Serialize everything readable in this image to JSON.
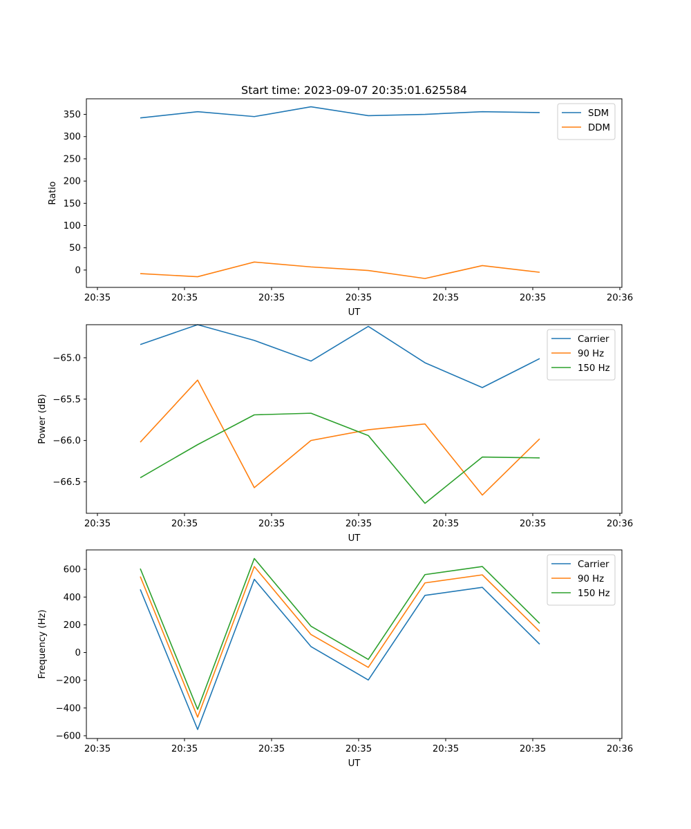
{
  "chart_data": [
    {
      "type": "line",
      "title": "Start time: 2023-09-07 20:35:01.625584",
      "xlabel": "UT",
      "ylabel": "Ratio",
      "ylim": [
        -39,
        385
      ],
      "yticks": [
        0,
        50,
        100,
        150,
        200,
        250,
        300,
        350
      ],
      "ytick_labels": [
        "0",
        "50",
        "100",
        "150",
        "200",
        "250",
        "300",
        "350"
      ],
      "xtick_labels": [
        "20:35",
        "20:35",
        "20:35",
        "20:35",
        "20:35",
        "20:35",
        "20:35"
      ],
      "xtick_last_label": "20:36",
      "legend": "top-right",
      "series": [
        {
          "name": "SDM",
          "color": "#1f77b4",
          "values": [
            342,
            356,
            345,
            367,
            347,
            350,
            356,
            354
          ]
        },
        {
          "name": "DDM",
          "color": "#ff7f0e",
          "values": [
            -8,
            -15,
            18,
            7,
            -1,
            -19,
            10,
            -5
          ]
        }
      ]
    },
    {
      "type": "line",
      "title": "",
      "xlabel": "UT",
      "ylabel": "Power (dB)",
      "ylim": [
        -66.88,
        -64.6
      ],
      "yticks": [
        -66.5,
        -66.0,
        -65.5,
        -65.0
      ],
      "ytick_labels": [
        "−66.5",
        "−66.0",
        "−65.5",
        "−65.0"
      ],
      "xtick_labels": [
        "20:35",
        "20:35",
        "20:35",
        "20:35",
        "20:35",
        "20:35",
        "20:35"
      ],
      "xtick_last_label": "20:36",
      "legend": "top-right",
      "series": [
        {
          "name": "Carrier",
          "color": "#1f77b4",
          "values": [
            -64.84,
            -64.6,
            -64.79,
            -65.04,
            -64.62,
            -65.06,
            -65.36,
            -65.01
          ]
        },
        {
          "name": "90 Hz",
          "color": "#ff7f0e",
          "values": [
            -66.02,
            -65.27,
            -66.57,
            -66.0,
            -65.87,
            -65.8,
            -66.66,
            -65.98
          ]
        },
        {
          "name": "150 Hz",
          "color": "#2ca02c",
          "values": [
            -66.45,
            -66.05,
            -65.69,
            -65.67,
            -65.94,
            -66.76,
            -66.2,
            -66.21
          ]
        }
      ]
    },
    {
      "type": "line",
      "title": "",
      "xlabel": "UT",
      "ylabel": "Frequency (Hz)",
      "ylim": [
        -620,
        740
      ],
      "yticks": [
        -600,
        -400,
        -200,
        0,
        200,
        400,
        600
      ],
      "ytick_labels": [
        "−600",
        "−400",
        "−200",
        "0",
        "200",
        "400",
        "600"
      ],
      "xtick_labels": [
        "20:35",
        "20:35",
        "20:35",
        "20:35",
        "20:35",
        "20:35",
        "20:35"
      ],
      "xtick_last_label": "20:36",
      "legend": "top-right",
      "series": [
        {
          "name": "Carrier",
          "color": "#1f77b4",
          "values": [
            455,
            -555,
            528,
            43,
            -198,
            412,
            470,
            60
          ]
        },
        {
          "name": "90 Hz",
          "color": "#ff7f0e",
          "values": [
            548,
            -466,
            620,
            130,
            -107,
            502,
            560,
            152
          ]
        },
        {
          "name": "150 Hz",
          "color": "#2ca02c",
          "values": [
            605,
            -410,
            678,
            190,
            -50,
            562,
            620,
            210
          ]
        }
      ]
    }
  ]
}
